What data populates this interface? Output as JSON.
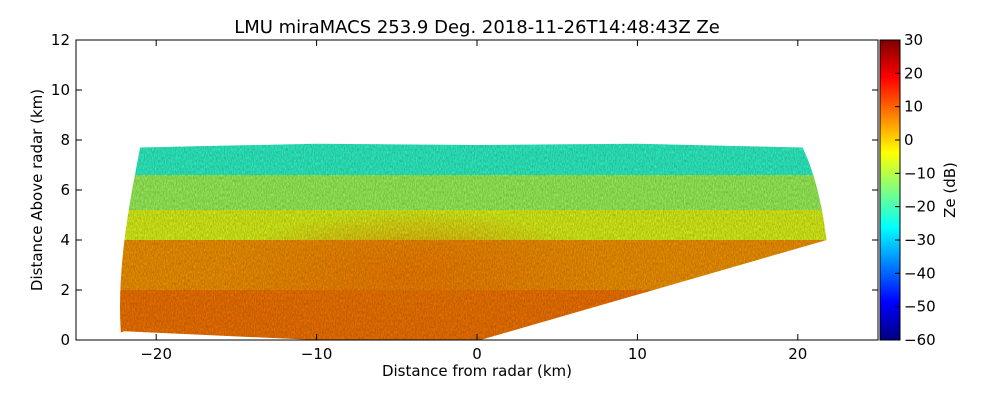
{
  "chart_data": {
    "type": "heatmap",
    "title": "LMU miraMACS 253.9 Deg. 2018-11-26T14:48:43Z  Ze",
    "xlabel": "Distance from radar (km)",
    "ylabel": "Distance Above radar  (km)",
    "xlim": [
      -25,
      25
    ],
    "ylim": [
      0,
      12
    ],
    "x_ticks": [
      -20,
      -10,
      0,
      10,
      20
    ],
    "x_tick_labels": [
      "−20",
      "−10",
      "0",
      "10",
      "20"
    ],
    "y_ticks": [
      0,
      2,
      4,
      6,
      8,
      10,
      12
    ],
    "y_tick_labels": [
      "0",
      "2",
      "4",
      "6",
      "8",
      "10",
      "12"
    ],
    "colorbar": {
      "label": "Ze (dB)",
      "range": [
        -60,
        30
      ],
      "ticks": [
        30,
        20,
        10,
        0,
        -10,
        -20,
        -30,
        -40,
        -50,
        -60
      ],
      "tick_labels": [
        "30",
        "20",
        "10",
        "0",
        "−10",
        "−20",
        "−30",
        "−40",
        "−50",
        "−60"
      ],
      "colormap": "jet",
      "colors": [
        "#00007f",
        "#0000ff",
        "#007fff",
        "#00ffff",
        "#7fff7f",
        "#ffff00",
        "#ff7f00",
        "#ff0000",
        "#7f0000"
      ]
    },
    "grid": false,
    "scan_region": {
      "left_edge_x_km": -22.2,
      "right_edge_x_km": 21.8,
      "echo_top_km": 7.8,
      "echo_bottom_right_km": 4.0
    },
    "layers": [
      {
        "top_km": 7.8,
        "bottom_km": 6.6,
        "ze_db": -22
      },
      {
        "top_km": 6.6,
        "bottom_km": 5.2,
        "ze_db": -12
      },
      {
        "top_km": 5.2,
        "bottom_km": 4.0,
        "ze_db": -6
      },
      {
        "top_km": 4.0,
        "bottom_km": 2.0,
        "ze_db": 5
      },
      {
        "top_km": 2.0,
        "bottom_km": 0.3,
        "ze_db": 8
      }
    ]
  }
}
